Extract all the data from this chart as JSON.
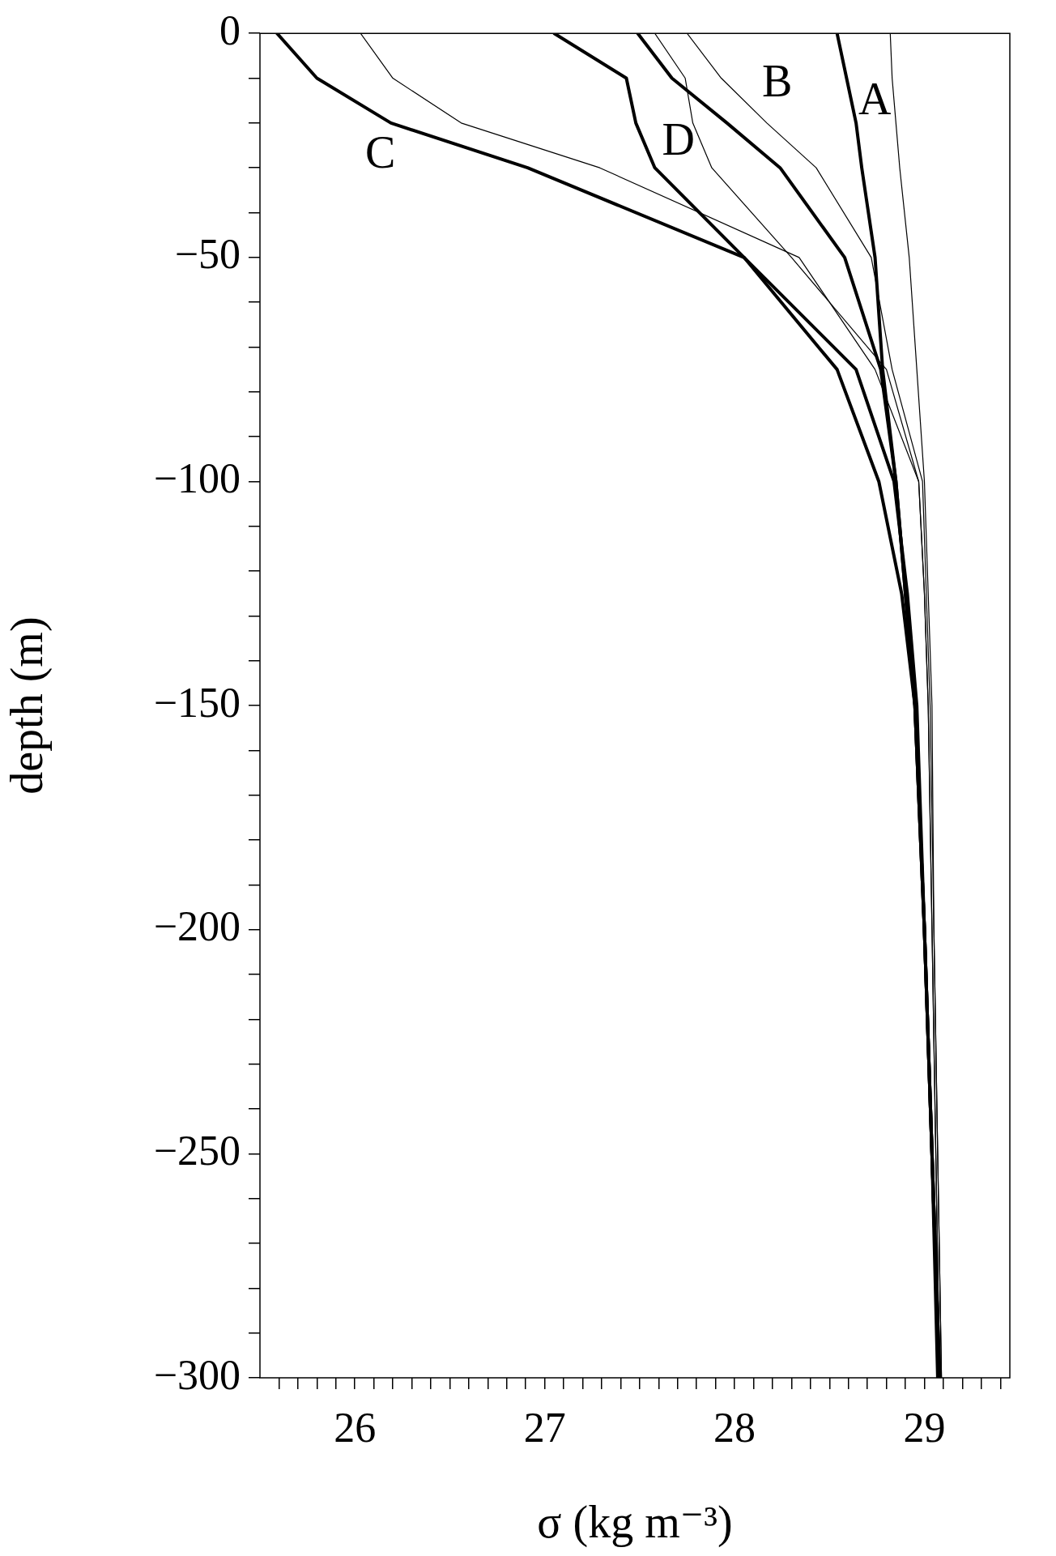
{
  "chart_data": {
    "type": "line",
    "xlabel": "σ (kg m⁻³)",
    "ylabel": "depth (m)",
    "xlim": [
      25.5,
      29.45
    ],
    "ylim": [
      -300,
      0
    ],
    "xticks": [
      {
        "value": 25.6,
        "label": null
      },
      {
        "value": 25.7,
        "label": null
      },
      {
        "value": 25.8,
        "label": null
      },
      {
        "value": 25.9,
        "label": null
      },
      26,
      {
        "value": 26.1,
        "label": null
      },
      {
        "value": 26.2,
        "label": null
      },
      {
        "value": 26.3,
        "label": null
      },
      {
        "value": 26.4,
        "label": null
      },
      {
        "value": 26.5,
        "label": null
      },
      {
        "value": 26.6,
        "label": null
      },
      {
        "value": 26.7,
        "label": null
      },
      {
        "value": 26.8,
        "label": null
      },
      {
        "value": 26.9,
        "label": null
      },
      27,
      {
        "value": 27.1,
        "label": null
      },
      {
        "value": 27.2,
        "label": null
      },
      {
        "value": 27.3,
        "label": null
      },
      {
        "value": 27.4,
        "label": null
      },
      {
        "value": 27.5,
        "label": null
      },
      {
        "value": 27.6,
        "label": null
      },
      {
        "value": 27.7,
        "label": null
      },
      {
        "value": 27.8,
        "label": null
      },
      {
        "value": 27.9,
        "label": null
      },
      28,
      {
        "value": 28.1,
        "label": null
      },
      {
        "value": 28.2,
        "label": null
      },
      {
        "value": 28.3,
        "label": null
      },
      {
        "value": 28.4,
        "label": null
      },
      {
        "value": 28.5,
        "label": null
      },
      {
        "value": 28.6,
        "label": null
      },
      {
        "value": 28.7,
        "label": null
      },
      {
        "value": 28.8,
        "label": null
      },
      {
        "value": 28.9,
        "label": null
      },
      29,
      {
        "value": 29.1,
        "label": null
      },
      {
        "value": 29.2,
        "label": null
      },
      {
        "value": 29.3,
        "label": null
      },
      {
        "value": 29.4,
        "label": null
      }
    ],
    "yticks": [
      {
        "value": -300,
        "label": "−300"
      },
      {
        "value": -290,
        "label": null
      },
      {
        "value": -280,
        "label": null
      },
      {
        "value": -270,
        "label": null
      },
      {
        "value": -260,
        "label": null
      },
      {
        "value": -250,
        "label": "−250"
      },
      {
        "value": -240,
        "label": null
      },
      {
        "value": -230,
        "label": null
      },
      {
        "value": -220,
        "label": null
      },
      {
        "value": -210,
        "label": null
      },
      {
        "value": -200,
        "label": "−200"
      },
      {
        "value": -190,
        "label": null
      },
      {
        "value": -180,
        "label": null
      },
      {
        "value": -170,
        "label": null
      },
      {
        "value": -160,
        "label": null
      },
      {
        "value": -150,
        "label": "−150"
      },
      {
        "value": -140,
        "label": null
      },
      {
        "value": -130,
        "label": null
      },
      {
        "value": -120,
        "label": null
      },
      {
        "value": -110,
        "label": null
      },
      {
        "value": -100,
        "label": "−100"
      },
      {
        "value": -90,
        "label": null
      },
      {
        "value": -80,
        "label": null
      },
      {
        "value": -70,
        "label": null
      },
      {
        "value": -60,
        "label": null
      },
      {
        "value": -50,
        "label": "−50"
      },
      {
        "value": -40,
        "label": null
      },
      {
        "value": -30,
        "label": null
      },
      {
        "value": -20,
        "label": null
      },
      {
        "value": -10,
        "label": null
      },
      0
    ],
    "series": [
      {
        "name": "A",
        "color": "#000000",
        "x": [
          28.54,
          28.59,
          28.64,
          28.67,
          28.74,
          28.78,
          28.85,
          28.9,
          28.95,
          29.0,
          29.04,
          29.08
        ],
        "values": [
          0,
          -10,
          -20,
          -30,
          -50,
          -75,
          -100,
          -125,
          -150,
          -200,
          -250,
          -300
        ]
      },
      {
        "name": "B",
        "color": "#000000",
        "x": [
          27.49,
          27.67,
          27.96,
          28.24,
          28.58,
          28.77,
          28.85,
          28.9,
          28.95,
          29.0,
          29.04,
          29.08
        ],
        "values": [
          0,
          -10,
          -20,
          -30,
          -50,
          -75,
          -100,
          -125,
          -150,
          -200,
          -250,
          -300
        ]
      },
      {
        "name": "C",
        "color": "#000000",
        "x": [
          25.59,
          25.8,
          26.19,
          26.91,
          28.05,
          28.54,
          28.76,
          28.88,
          28.95,
          29.0,
          29.04,
          29.07
        ],
        "values": [
          0,
          -10,
          -20,
          -30,
          -50,
          -75,
          -100,
          -125,
          -150,
          -200,
          -250,
          -300
        ]
      },
      {
        "name": "D",
        "color": "#000000",
        "x": [
          27.05,
          27.43,
          27.48,
          27.58,
          28.05,
          28.64,
          28.84,
          28.91,
          28.96,
          29.0,
          29.04,
          29.08
        ],
        "values": [
          0,
          -10,
          -20,
          -30,
          -50,
          -75,
          -100,
          -125,
          -150,
          -200,
          -250,
          -300
        ]
      },
      {
        "color": "#000000",
        "x": [
          26.03,
          26.2,
          26.56,
          27.29,
          28.34,
          28.74,
          28.97,
          29.0,
          29.02,
          29.04,
          29.06,
          29.08
        ],
        "values": [
          0,
          -10,
          -20,
          -30,
          -50,
          -75,
          -100,
          -125,
          -150,
          -200,
          -250,
          -300
        ]
      },
      {
        "color": "#000000",
        "x": [
          27.58,
          27.74,
          27.78,
          27.88,
          28.3,
          28.8,
          28.97,
          29.0,
          29.02,
          29.04,
          29.06,
          29.08
        ],
        "values": [
          0,
          -10,
          -20,
          -30,
          -50,
          -75,
          -100,
          -125,
          -150,
          -200,
          -250,
          -300
        ]
      },
      {
        "color": "#000000",
        "x": [
          27.75,
          27.93,
          28.17,
          28.43,
          28.72,
          28.83,
          28.99,
          29.01,
          29.03,
          29.05,
          29.07,
          29.09
        ],
        "values": [
          0,
          -10,
          -20,
          -30,
          -50,
          -75,
          -100,
          -125,
          -150,
          -200,
          -250,
          -300
        ]
      },
      {
        "color": "#000000",
        "x": [
          28.82,
          28.83,
          28.85,
          28.87,
          28.92,
          28.96,
          29.0,
          29.02,
          29.04,
          29.05,
          29.07,
          29.09
        ],
        "values": [
          0,
          -10,
          -20,
          -30,
          -50,
          -75,
          -100,
          -125,
          -150,
          -200,
          -250,
          -300
        ]
      }
    ],
    "grid": false,
    "legend": false
  }
}
